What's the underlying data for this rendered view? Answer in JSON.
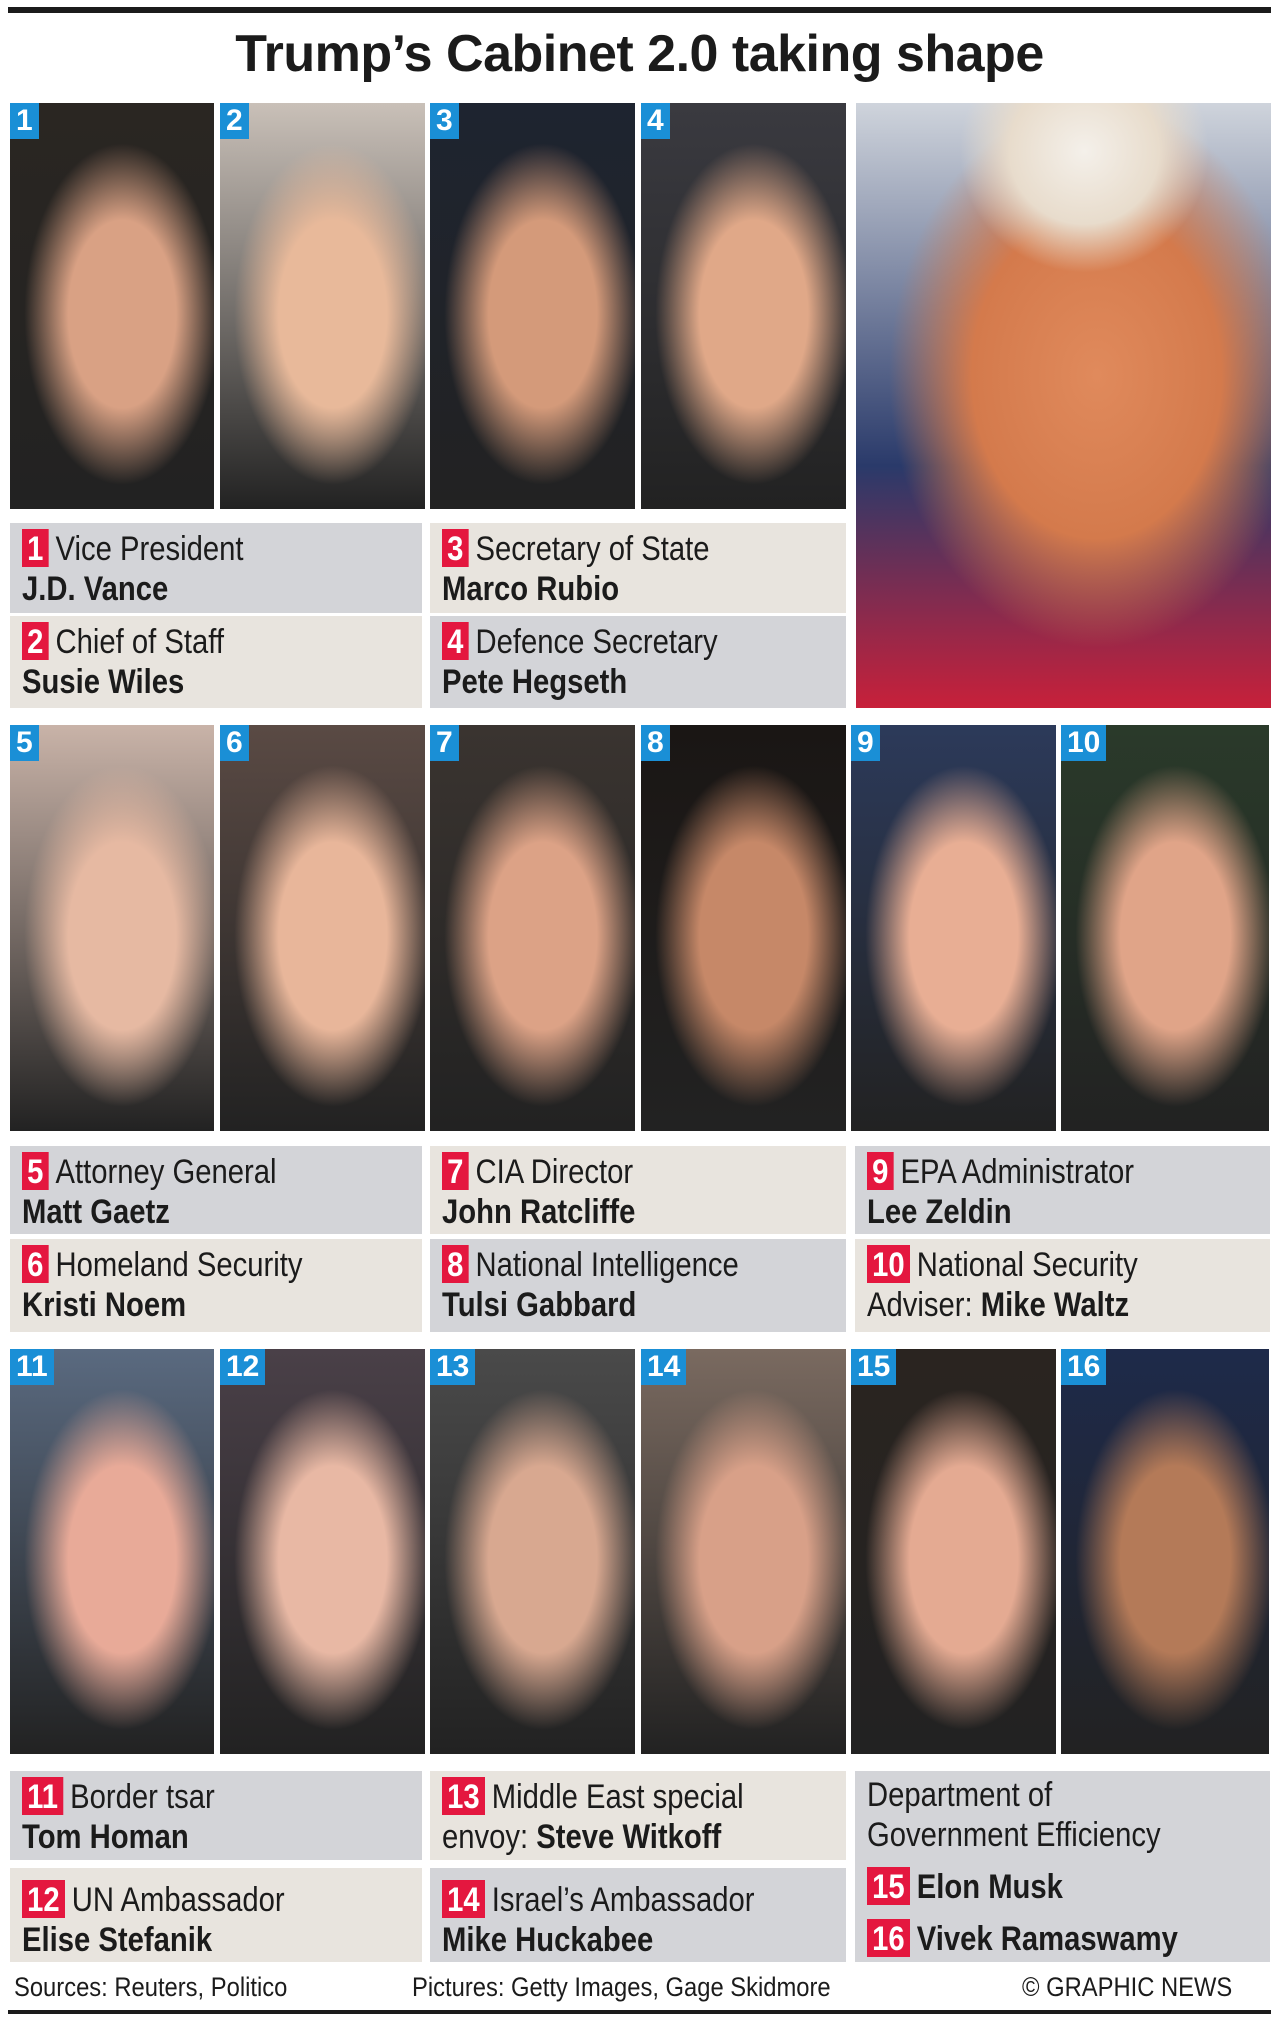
{
  "title": "Trump’s Cabinet 2.0 taking shape",
  "colors": {
    "badge_red": "#e4173f",
    "photo_badge_blue": "#1a8fd6",
    "panel_gray": "#d3d4d8",
    "panel_beige": "#e8e4de"
  },
  "people": [
    {
      "num": "1",
      "role": "Vice President",
      "name": "J.D. Vance"
    },
    {
      "num": "2",
      "role": "Chief of Staff",
      "name": "Susie Wiles"
    },
    {
      "num": "3",
      "role": "Secretary of State",
      "name": "Marco Rubio"
    },
    {
      "num": "4",
      "role": "Defence Secretary",
      "name": "Pete Hegseth"
    },
    {
      "num": "5",
      "role": "Attorney General",
      "name": "Matt Gaetz"
    },
    {
      "num": "6",
      "role": "Homeland Security",
      "name": "Kristi Noem"
    },
    {
      "num": "7",
      "role": "CIA Director",
      "name": "John Ratcliffe"
    },
    {
      "num": "8",
      "role": "National Intelligence",
      "name": "Tulsi Gabbard"
    },
    {
      "num": "9",
      "role": "EPA Administrator",
      "name": "Lee Zeldin"
    },
    {
      "num": "10",
      "role": "National Security",
      "role2": "Adviser:",
      "name": "Mike Waltz"
    },
    {
      "num": "11",
      "role": "Border tsar",
      "name": "Tom Homan"
    },
    {
      "num": "12",
      "role": "UN Ambassador",
      "name": "Elise Stefanik"
    },
    {
      "num": "13",
      "role": "Middle East special",
      "role2": "envoy:",
      "name": "Steve Witkoff"
    },
    {
      "num": "14",
      "role": "Israel’s Ambassador",
      "name": "Mike Huckabee"
    },
    {
      "num": "15",
      "name": "Elon Musk"
    },
    {
      "num": "16",
      "name": "Vivek Ramaswamy"
    }
  ],
  "doge": {
    "line1": "Department of",
    "line2": "Government Efficiency"
  },
  "footer": {
    "sources": "Sources: Reuters, Politico",
    "pictures": "Pictures: Getty Images, Gage Skidmore",
    "credit": "© GRAPHIC NEWS"
  }
}
